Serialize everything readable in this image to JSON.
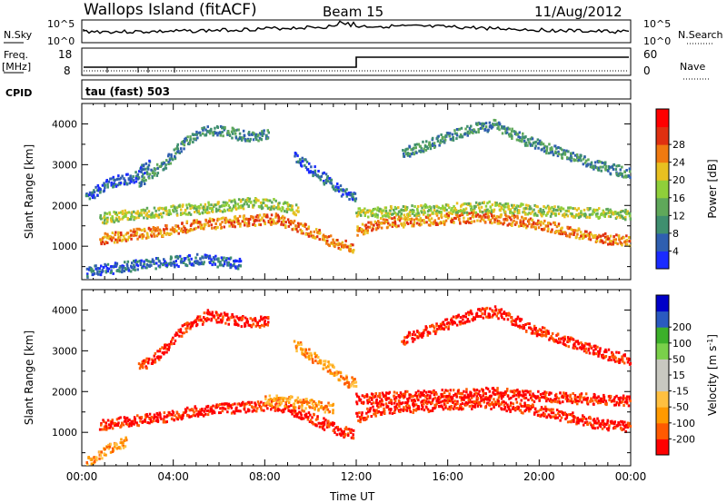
{
  "header": {
    "station": "Wallops Island (fitACF)",
    "beam": "Beam 15",
    "date": "11/Aug/2012"
  },
  "top_panels": {
    "nsky_label": "N.Sky",
    "nsky_ticks": [
      "10^5",
      "10^0"
    ],
    "nsearch_label": "N.Search",
    "nsearch_ticks": [
      "10^5",
      "10^0"
    ],
    "freq_label": "Freq.",
    "freq_unit": "[MHz]",
    "freq_ticks": [
      "18",
      "8"
    ],
    "nave_label": "Nave",
    "nave_ticks": [
      "60",
      "0"
    ],
    "cpid_label": "CPID",
    "cpid_text": "tau (fast) 503"
  },
  "chart_data": [
    {
      "type": "heatmap",
      "name": "power-panel",
      "ylabel": "Slant Range [km]",
      "ylim": [
        180,
        4500
      ],
      "yticks": [
        1000,
        2000,
        3000,
        4000
      ],
      "xlim": [
        0,
        24
      ],
      "colorbar": {
        "label": "Power [dB]",
        "ticks": [
          "4",
          "8",
          "12",
          "16",
          "20",
          "24",
          "28"
        ],
        "colors": [
          "#1a2bff",
          "#2f5fb0",
          "#3f8f6f",
          "#5fa85a",
          "#8fcf3a",
          "#e8c020",
          "#f07a10",
          "#e03010",
          "#ff0000"
        ]
      },
      "bands": [
        {
          "level": 6,
          "points": [
            [
              0.8,
              1200
            ],
            [
              2,
              1300
            ],
            [
              3.5,
              1400
            ],
            [
              5,
              1550
            ],
            [
              7,
              1650
            ],
            [
              8.5,
              1700
            ],
            [
              9.5,
              1500
            ],
            [
              10.5,
              1250
            ],
            [
              11.3,
              1050
            ],
            [
              11.9,
              1000
            ]
          ]
        },
        {
          "level": 6,
          "points": [
            [
              12,
              1400
            ],
            [
              13,
              1600
            ],
            [
              14.5,
              1650
            ],
            [
              16,
              1700
            ],
            [
              17.5,
              1750
            ],
            [
              19,
              1650
            ],
            [
              20.5,
              1500
            ],
            [
              22,
              1300
            ],
            [
              23,
              1200
            ],
            [
              24,
              1150
            ]
          ]
        },
        {
          "level": 4,
          "points": [
            [
              0.8,
              1700
            ],
            [
              2,
              1800
            ],
            [
              4,
              1900
            ],
            [
              6,
              2000
            ],
            [
              7.5,
              2100
            ],
            [
              8.5,
              2050
            ],
            [
              9.5,
              1900
            ]
          ]
        },
        {
          "level": 4,
          "points": [
            [
              12,
              1850
            ],
            [
              14,
              1900
            ],
            [
              16,
              1950
            ],
            [
              18,
              2000
            ],
            [
              20,
              1900
            ],
            [
              22,
              1850
            ],
            [
              24,
              1800
            ]
          ]
        },
        {
          "level": 2,
          "points": [
            [
              2.5,
              2600
            ],
            [
              3.5,
              3000
            ],
            [
              4.5,
              3600
            ],
            [
              5.5,
              3900
            ],
            [
              6.5,
              3800
            ],
            [
              7.5,
              3700
            ],
            [
              8.2,
              3800
            ]
          ]
        },
        {
          "level": 2,
          "points": [
            [
              14,
              3300
            ],
            [
              15.5,
              3600
            ],
            [
              17,
              3900
            ],
            [
              18,
              4000
            ],
            [
              19.5,
              3600
            ],
            [
              21,
              3300
            ],
            [
              22.5,
              3000
            ],
            [
              24,
              2800
            ]
          ]
        },
        {
          "level": 1,
          "points": [
            [
              0.2,
              2200
            ],
            [
              1.2,
              2600
            ],
            [
              2.2,
              2700
            ],
            [
              3,
              3100
            ]
          ]
        },
        {
          "level": 1,
          "points": [
            [
              9.3,
              3200
            ],
            [
              10,
              2900
            ],
            [
              10.8,
              2600
            ],
            [
              11.5,
              2300
            ],
            [
              12,
              2200
            ]
          ]
        },
        {
          "level": 1,
          "points": [
            [
              0.2,
              400
            ],
            [
              1.5,
              500
            ],
            [
              3,
              600
            ],
            [
              5,
              700
            ],
            [
              7,
              600
            ]
          ]
        }
      ]
    },
    {
      "type": "heatmap",
      "name": "velocity-panel",
      "ylabel": "Slant Range [km]",
      "ylim": [
        180,
        4500
      ],
      "yticks": [
        1000,
        2000,
        3000,
        4000
      ],
      "xlim": [
        0,
        24
      ],
      "xticks": [
        "00:00",
        "04:00",
        "08:00",
        "12:00",
        "16:00",
        "20:00",
        "00:00"
      ],
      "xlabel": "Time UT",
      "colorbar": {
        "label": "Velocity [m s",
        "label_sup": "-1",
        "label_end": "]",
        "ticks": [
          "-200",
          "-100",
          "-50",
          "-15",
          "15",
          "50",
          "100",
          "200"
        ],
        "colors": [
          "#ff0000",
          "#ff5a00",
          "#ff9a00",
          "#ffc040",
          "#c8c8c0",
          "#c8c8c0",
          "#7ad04a",
          "#3cb02a",
          "#2a5ac0",
          "#0000c8"
        ]
      },
      "bands": [
        {
          "level": 0,
          "points": [
            [
              0.8,
              1200
            ],
            [
              2,
              1300
            ],
            [
              3.5,
              1400
            ],
            [
              5,
              1550
            ],
            [
              7,
              1650
            ],
            [
              8.5,
              1700
            ],
            [
              9.5,
              1500
            ],
            [
              10.5,
              1250
            ],
            [
              11.3,
              1050
            ],
            [
              11.9,
              1000
            ]
          ]
        },
        {
          "level": 0,
          "points": [
            [
              12,
              1400
            ],
            [
              13,
              1600
            ],
            [
              14.5,
              1650
            ],
            [
              16,
              1700
            ],
            [
              17.5,
              1750
            ],
            [
              19,
              1650
            ],
            [
              20.5,
              1500
            ],
            [
              22,
              1300
            ],
            [
              23,
              1200
            ],
            [
              24,
              1150
            ]
          ]
        },
        {
          "level": 0,
          "points": [
            [
              12,
              1850
            ],
            [
              14,
              1900
            ],
            [
              16,
              1950
            ],
            [
              18,
              2000
            ],
            [
              20,
              1900
            ],
            [
              22,
              1850
            ],
            [
              24,
              1800
            ]
          ]
        },
        {
          "level": 0,
          "points": [
            [
              14,
              3300
            ],
            [
              15.5,
              3600
            ],
            [
              17,
              3900
            ],
            [
              18,
              4000
            ],
            [
              19.5,
              3600
            ],
            [
              21,
              3300
            ],
            [
              22.5,
              3000
            ],
            [
              24,
              2800
            ]
          ]
        },
        {
          "level": 2,
          "points": [
            [
              9.3,
              3200
            ],
            [
              10,
              2900
            ],
            [
              10.8,
              2600
            ],
            [
              11.5,
              2300
            ],
            [
              12,
              2200
            ]
          ]
        },
        {
          "level": 2,
          "points": [
            [
              8,
              1800
            ],
            [
              9,
              1800
            ],
            [
              10,
              1700
            ],
            [
              11,
              1600
            ]
          ]
        },
        {
          "level": 0,
          "points": [
            [
              2.5,
              2600
            ],
            [
              3.5,
              3000
            ],
            [
              4.5,
              3600
            ],
            [
              5.5,
              3900
            ],
            [
              6.5,
              3800
            ],
            [
              7.5,
              3700
            ],
            [
              8.2,
              3800
            ]
          ]
        },
        {
          "level": 2,
          "points": [
            [
              0.2,
              300
            ],
            [
              1,
              600
            ],
            [
              2,
              800
            ]
          ]
        }
      ]
    }
  ]
}
